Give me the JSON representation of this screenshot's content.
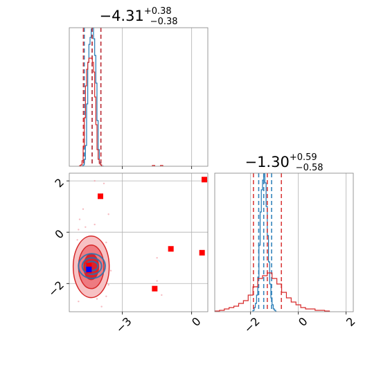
{
  "chart_data": [
    {
      "type": "histogram",
      "panel": "top-left",
      "title": {
        "value": "−4.31",
        "sup": "+0.38",
        "sub": "−0.38"
      },
      "xlim": [
        -5.3,
        0.7
      ],
      "grid": true,
      "series": [
        {
          "name": "",
          "color": "#1f77b4",
          "bin_edges": [
            -4.75,
            -4.7,
            -4.65,
            -4.6,
            -4.55,
            -4.5,
            -4.45,
            -4.4,
            -4.35,
            -4.3,
            -4.25,
            -4.2,
            -4.15,
            -4.1,
            -4.05,
            -4.0,
            -3.95,
            -3.9,
            -3.85,
            -3.8
          ],
          "values": [
            0,
            0.01,
            0.05,
            0.15,
            0.45,
            0.75,
            0.88,
            0.93,
            0.99,
            1.0,
            0.92,
            0.8,
            0.6,
            0.33,
            0.12,
            0.03,
            0.01,
            0,
            0
          ],
          "quantile_lines": [
            -4.65,
            -4.31,
            -3.93
          ]
        },
        {
          "name": "",
          "color": "#d62728",
          "bin_edges": [
            -4.85,
            -4.8,
            -4.75,
            -4.7,
            -4.65,
            -4.6,
            -4.55,
            -4.5,
            -4.45,
            -4.4,
            -4.35,
            -4.3,
            -4.25,
            -4.2,
            -4.15,
            -4.1,
            -4.05,
            -4.0,
            -3.95,
            -3.9,
            -3.85
          ],
          "values": [
            0.005,
            0.01,
            0.04,
            0.14,
            0.35,
            0.58,
            0.7,
            0.75,
            0.78,
            0.78,
            0.78,
            0.75,
            0.68,
            0.5,
            0.3,
            0.12,
            0.05,
            0.02,
            0.01,
            0
          ],
          "extra_bins": [
            {
              "x": [
                -1.7,
                -1.6
              ],
              "v": 0.006
            },
            {
              "x": [
                -1.35,
                -1.25
              ],
              "v": 0.006
            }
          ],
          "quantile_lines": [
            -4.69,
            -4.31,
            -3.93
          ]
        }
      ]
    },
    {
      "type": "histogram",
      "panel": "bottom-right",
      "title": {
        "value": "−1.30",
        "sup": "+0.59",
        "sub": "−0.58"
      },
      "xlim": [
        -3.5,
        2.3
      ],
      "xticks": [
        -2,
        0,
        2
      ],
      "xtick_labels": [
        "−2",
        "0",
        "2"
      ],
      "grid": true,
      "series": [
        {
          "name": "",
          "color": "#1f77b4",
          "bin_edges": [
            -1.9,
            -1.85,
            -1.8,
            -1.75,
            -1.7,
            -1.65,
            -1.6,
            -1.55,
            -1.5,
            -1.45,
            -1.4,
            -1.35,
            -1.3,
            -1.25,
            -1.2,
            -1.15,
            -1.1,
            -1.05,
            -1.0,
            -0.95,
            -0.9
          ],
          "values": [
            0.01,
            0.03,
            0.06,
            0.12,
            0.25,
            0.48,
            0.72,
            0.88,
            0.95,
            1.0,
            0.93,
            0.76,
            0.55,
            0.36,
            0.2,
            0.1,
            0.05,
            0.02,
            0.01,
            0
          ],
          "quantile_lines": [
            -1.66,
            -1.45,
            -1.12
          ]
        },
        {
          "name": "",
          "color": "#d62728",
          "bin_edges": [
            -3.5,
            -3.3,
            -3.1,
            -2.9,
            -2.7,
            -2.5,
            -2.3,
            -2.1,
            -1.9,
            -1.7,
            -1.5,
            -1.3,
            -1.1,
            -0.9,
            -0.7,
            -0.5,
            -0.3,
            -0.1,
            0.1,
            0.3,
            0.5,
            0.7,
            0.9,
            1.1,
            1.3
          ],
          "values": [
            0.005,
            0.01,
            0.02,
            0.03,
            0.04,
            0.06,
            0.08,
            0.12,
            0.18,
            0.24,
            0.26,
            0.28,
            0.24,
            0.2,
            0.14,
            0.1,
            0.07,
            0.05,
            0.03,
            0.02,
            0.02,
            0.01,
            0.01,
            0.005
          ],
          "quantile_lines": [
            -1.88,
            -1.3,
            -0.71
          ]
        }
      ]
    },
    {
      "type": "scatter",
      "panel": "bottom-left",
      "xlim": [
        -5.3,
        0.7
      ],
      "ylim": [
        -3.1,
        2.3
      ],
      "xticks": [
        -3,
        0
      ],
      "xtick_labels": [
        "−3",
        "0"
      ],
      "yticks": [
        -2,
        0,
        2
      ],
      "ytick_labels": [
        "−2",
        "0",
        "2"
      ],
      "grid": true,
      "series": [
        {
          "name": "",
          "color": "#ff0000",
          "marker": "square",
          "points": [
            [
              0.55,
              2.05
            ],
            [
              -3.95,
              1.4
            ],
            [
              -0.9,
              -0.65
            ],
            [
              0.45,
              -0.8
            ],
            [
              -1.6,
              -2.2
            ],
            [
              -4.45,
              -1.3
            ],
            [
              -4.45,
              -1.5
            ]
          ]
        },
        {
          "name": "",
          "color": "#0000ff",
          "marker": "square",
          "points": [
            [
              -4.45,
              -1.45
            ]
          ]
        }
      ],
      "faint_samples": [
        [
          -4.9,
          0.1
        ],
        [
          -4.85,
          0.5
        ],
        [
          -4.7,
          0.9
        ],
        [
          -4.2,
          0.3
        ],
        [
          -4.95,
          -0.3
        ],
        [
          -3.7,
          -0.4
        ],
        [
          -3.6,
          0.7
        ],
        [
          -3.8,
          1.9
        ],
        [
          -4.2,
          2.0
        ],
        [
          -5.0,
          -1.0
        ],
        [
          -4.1,
          -2.6
        ],
        [
          -4.9,
          -2.7
        ],
        [
          -3.7,
          -2.5
        ],
        [
          -3.6,
          -2.05
        ],
        [
          -1.5,
          -1.0
        ],
        [
          -1.3,
          -2.45
        ],
        [
          -1.5,
          -1.9
        ],
        [
          -3.5,
          -1.5
        ],
        [
          -3.9,
          -2.9
        ],
        [
          -4.6,
          0.2
        ]
      ],
      "contours": [
        {
          "color": "#1f77b4",
          "center": [
            -4.32,
            -1.32
          ],
          "levels": [
            [
              0.26,
              0.18
            ],
            [
              0.42,
              0.32
            ],
            [
              0.58,
              0.48
            ]
          ]
        },
        {
          "color": "#d62728",
          "center": [
            -4.35,
            -1.35
          ],
          "levels": [
            [
              0.32,
              0.5
            ],
            [
              0.55,
              0.85
            ],
            [
              0.78,
              1.2
            ]
          ]
        }
      ]
    }
  ]
}
